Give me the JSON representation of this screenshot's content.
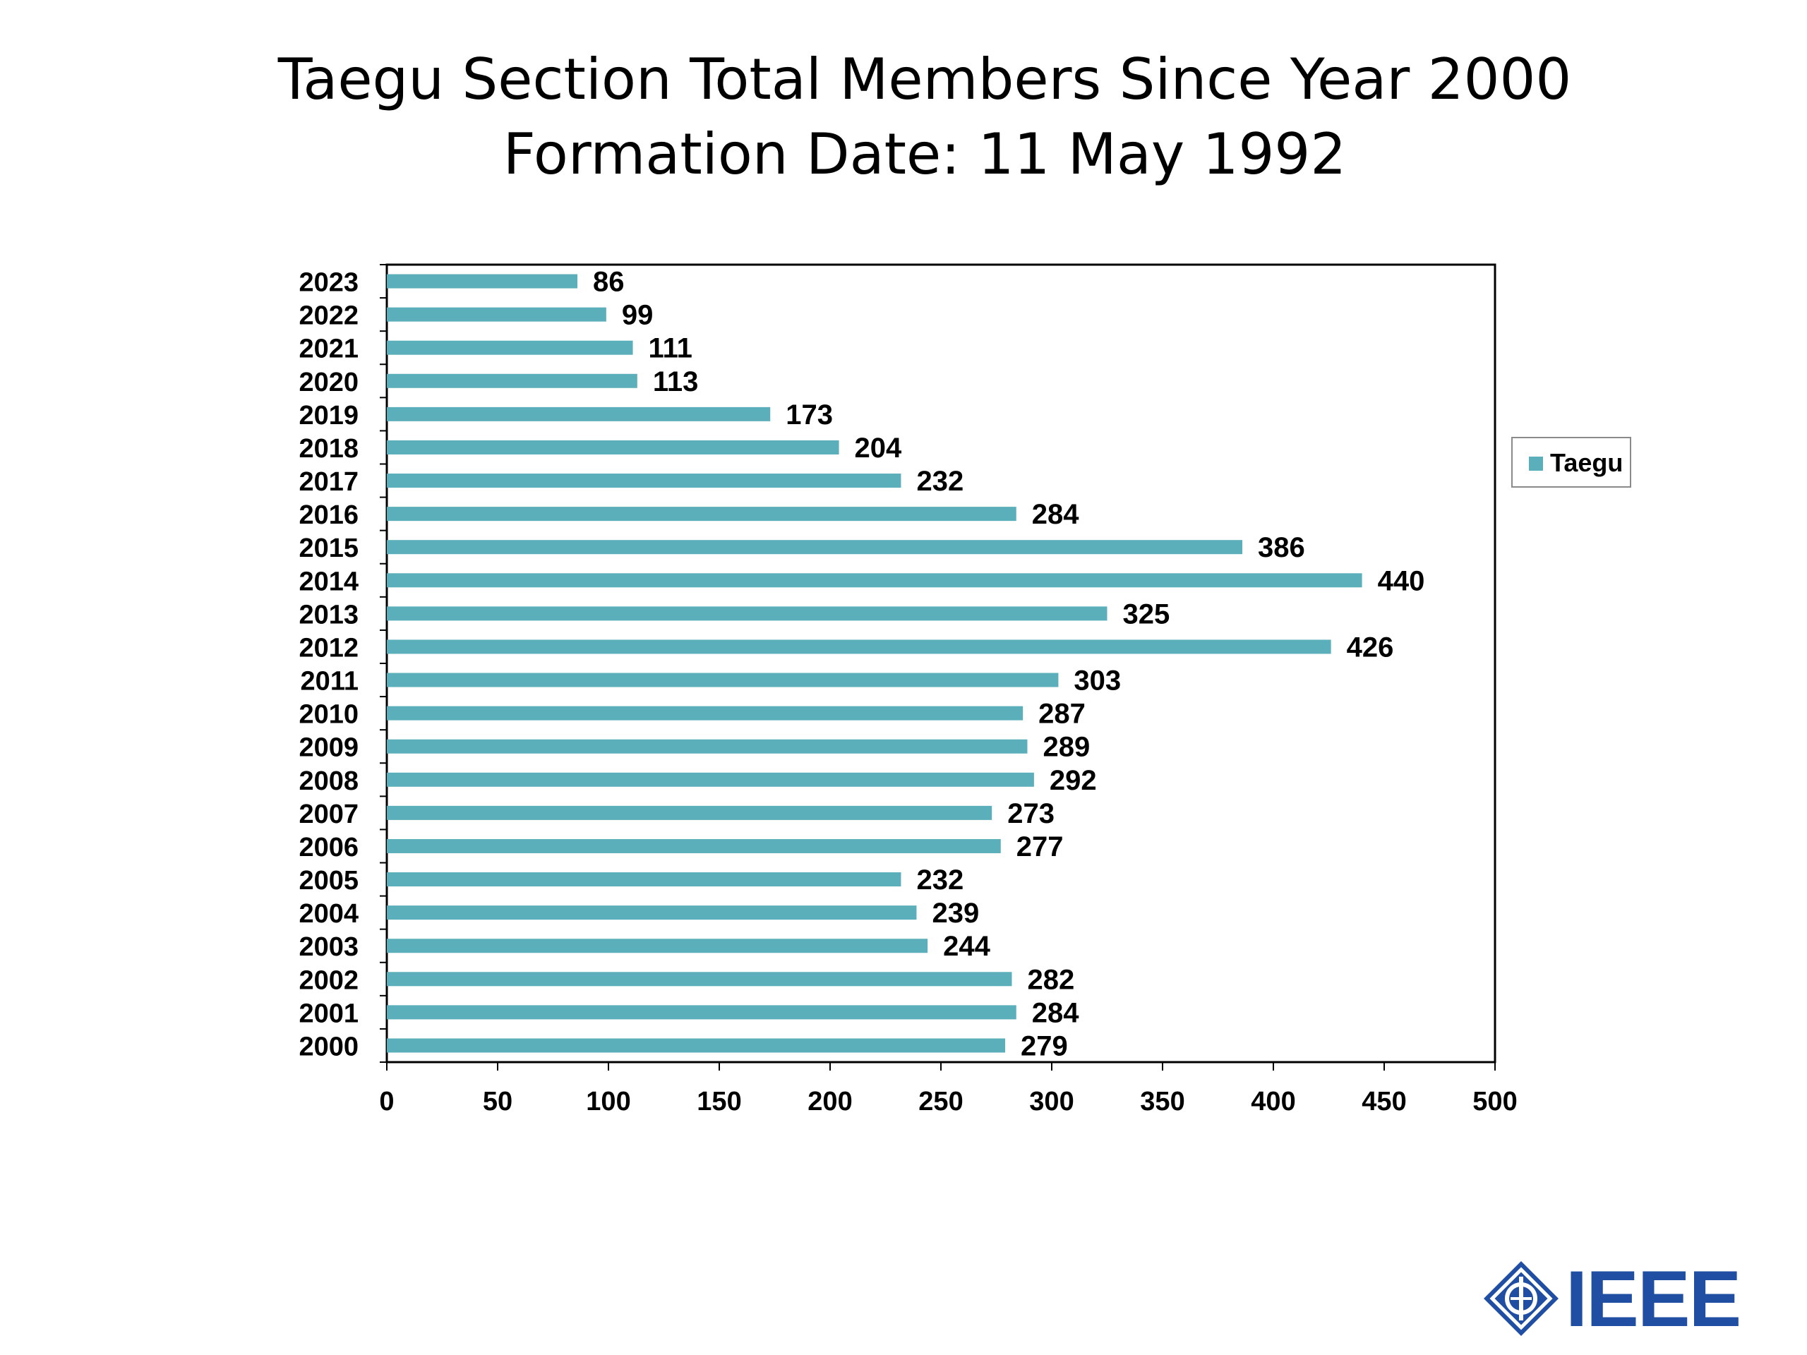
{
  "page": {
    "title_line1": "Taegu Section Total Members Since Year 2000",
    "title_line2": "Formation Date: 11 May 1992"
  },
  "colors": {
    "bar": "#5BAFBA",
    "axis": "#000000",
    "brand": "#1F4EA3"
  },
  "logo": {
    "text": "IEEE",
    "icon": "ieee-diamond-icon"
  },
  "chart_data": {
    "type": "bar",
    "orientation": "horizontal",
    "title": "Taegu Section Total Members Since Year 2000\nFormation Date: 11 May 1992",
    "categories": [
      "2000",
      "2001",
      "2002",
      "2003",
      "2004",
      "2005",
      "2006",
      "2007",
      "2008",
      "2009",
      "2010",
      "2011",
      "2012",
      "2013",
      "2014",
      "2015",
      "2016",
      "2017",
      "2018",
      "2019",
      "2020",
      "2021",
      "2022",
      "2023"
    ],
    "series": [
      {
        "name": "Taegu",
        "values": [
          279,
          284,
          282,
          244,
          239,
          232,
          277,
          273,
          292,
          289,
          287,
          303,
          426,
          325,
          440,
          386,
          284,
          232,
          204,
          173,
          113,
          111,
          99,
          86
        ]
      }
    ],
    "xlim": [
      0,
      500
    ],
    "xticks": [
      0,
      50,
      100,
      150,
      200,
      250,
      300,
      350,
      400,
      450,
      500
    ],
    "xlabel": "",
    "ylabel": "",
    "grid": false,
    "legend": "right",
    "data_labels": true
  }
}
